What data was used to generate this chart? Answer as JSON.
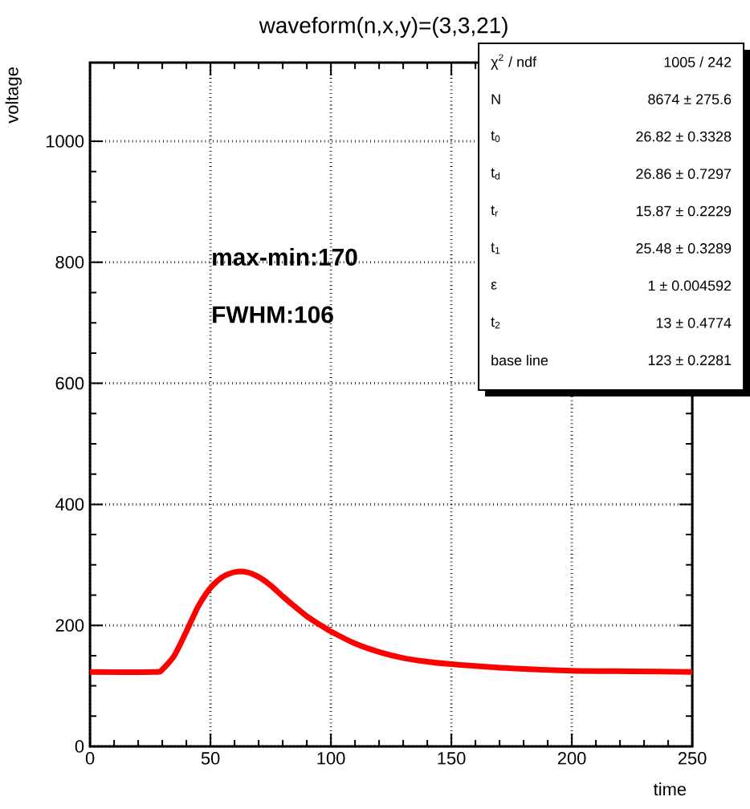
{
  "chart_data": {
    "type": "line",
    "title": "waveform(n,x,y)=(3,3,21)",
    "xlabel": "time",
    "ylabel": "voltage",
    "x": [
      0,
      27,
      30,
      35,
      40,
      45,
      50,
      55,
      60,
      65,
      70,
      75,
      80,
      85,
      90,
      95,
      100,
      110,
      120,
      130,
      140,
      150,
      175,
      200,
      225,
      250
    ],
    "series": [
      {
        "color": "#ff0000",
        "values": [
          123,
          123,
          127,
          150,
          190,
          232,
          262,
          280,
          288,
          288,
          280,
          266,
          248,
          231,
          215,
          202,
          190,
          170,
          156,
          146,
          140,
          136,
          129,
          125,
          124,
          123
        ]
      }
    ],
    "xlim": [
      0,
      250
    ],
    "ylim": [
      0,
      1130
    ],
    "xticks": [
      0,
      50,
      100,
      150,
      200,
      250
    ],
    "yticks": [
      0,
      200,
      400,
      600,
      800,
      1000
    ],
    "grid": true,
    "line_style": "solid",
    "marker": "none",
    "annotations": [
      "max-min:170",
      "FWHM:106",
      "χ$^{2}$ / ndf",
      "1005 / 242",
      "N",
      "8674 ± 275.6",
      "t$_{0}$",
      "26.82 ± 0.3328",
      "t$_{d}$",
      "26.86 ± 0.7297",
      "t$_{r}$",
      "15.87 ± 0.2229",
      "t$_{1}$",
      "25.48 ± 0.3289",
      "ε",
      "1 ± 0.004592",
      "t$_{2}$",
      "13 ± 0.4774",
      "base line",
      "123 ± 0.2281"
    ]
  }
}
